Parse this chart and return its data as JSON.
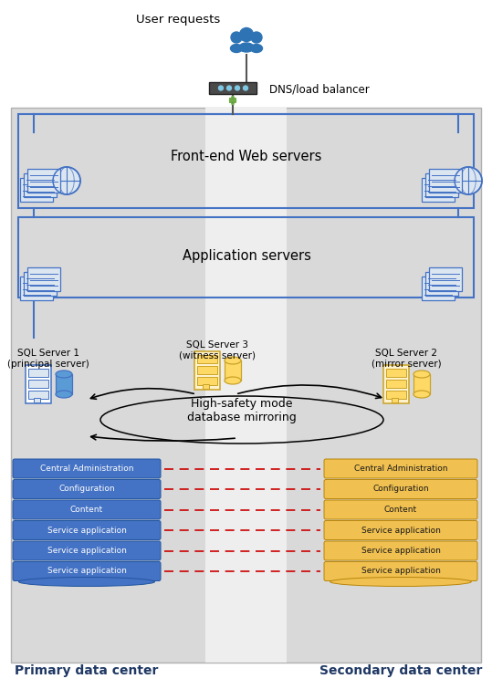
{
  "primary_dc_label": "Primary data center",
  "secondary_dc_label": "Secondary data center",
  "user_requests_label": "User requests",
  "dns_label": "DNS/load balancer",
  "frontend_label": "Front-end Web servers",
  "appserver_label": "Application servers",
  "sql1_label": "SQL Server 1\n(principal server)",
  "sql2_label": "SQL Server 2\n(mirror server)",
  "sql3_label": "SQL Server 3\n(witness server)",
  "mirroring_label": "High-safety mode\ndatabase mirroring",
  "blue_db_labels": [
    "Central Administration",
    "Configuration",
    "Content",
    "Service application",
    "Service application",
    "Service application"
  ],
  "gold_db_labels": [
    "Central Administration",
    "Configuration",
    "Content",
    "Service application",
    "Service application",
    "Service application"
  ],
  "blue_color": "#4472c4",
  "blue_light": "#5b9bd5",
  "blue_pale": "#dce6f1",
  "gold_color": "#c9a227",
  "gold_bg": "#ffd966",
  "gold_pale": "#fff2cc",
  "bg_gray": "#d9d9d9",
  "stripe_color": "#eeeeee",
  "border_blue": "#2e74b5",
  "dc_label_color": "#1f3864"
}
